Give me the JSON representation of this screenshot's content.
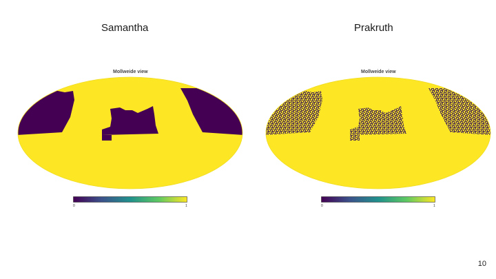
{
  "slide": {
    "left_title": "Samantha",
    "right_title": "Prakruth",
    "page_number": "10"
  },
  "maps": {
    "view_label": "Mollweide view",
    "colorbar_min_label": "0",
    "colorbar_max_label": "1",
    "colors": {
      "masked": "#440154",
      "unmasked": "#fde725",
      "noise_mid": "#b8a02a"
    }
  }
}
